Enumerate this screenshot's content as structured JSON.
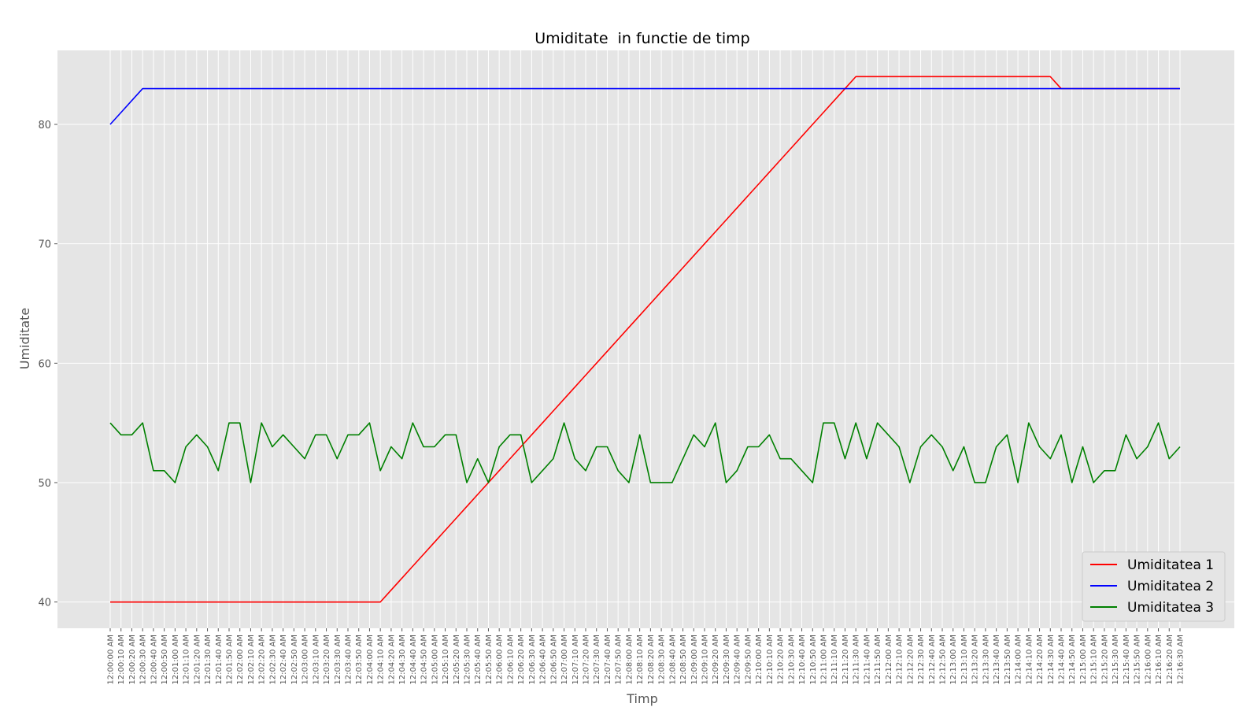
{
  "chart_data": {
    "type": "line",
    "title": "Umiditate  in functie de timp",
    "xlabel": "Timp",
    "ylabel": "Umiditate",
    "ylim": [
      37.8,
      86.2
    ],
    "yticks": [
      40,
      50,
      60,
      70,
      80
    ],
    "grid": true,
    "legend_position": "bottom-right",
    "x": [
      "12:00:00 AM",
      "12:00:10 AM",
      "12:00:20 AM",
      "12:00:30 AM",
      "12:00:40 AM",
      "12:00:50 AM",
      "12:01:00 AM",
      "12:01:10 AM",
      "12:01:20 AM",
      "12:01:30 AM",
      "12:01:40 AM",
      "12:01:50 AM",
      "12:02:00 AM",
      "12:02:10 AM",
      "12:02:20 AM",
      "12:02:30 AM",
      "12:02:40 AM",
      "12:02:50 AM",
      "12:03:00 AM",
      "12:03:10 AM",
      "12:03:20 AM",
      "12:03:30 AM",
      "12:03:40 AM",
      "12:03:50 AM",
      "12:04:00 AM",
      "12:04:10 AM",
      "12:04:20 AM",
      "12:04:30 AM",
      "12:04:40 AM",
      "12:04:50 AM",
      "12:05:00 AM",
      "12:05:10 AM",
      "12:05:20 AM",
      "12:05:30 AM",
      "12:05:40 AM",
      "12:05:50 AM",
      "12:06:00 AM",
      "12:06:10 AM",
      "12:06:20 AM",
      "12:06:30 AM",
      "12:06:40 AM",
      "12:06:50 AM",
      "12:07:00 AM",
      "12:07:10 AM",
      "12:07:20 AM",
      "12:07:30 AM",
      "12:07:40 AM",
      "12:07:50 AM",
      "12:08:00 AM",
      "12:08:10 AM",
      "12:08:20 AM",
      "12:08:30 AM",
      "12:08:40 AM",
      "12:08:50 AM",
      "12:09:00 AM",
      "12:09:10 AM",
      "12:09:20 AM",
      "12:09:30 AM",
      "12:09:40 AM",
      "12:09:50 AM",
      "12:10:00 AM",
      "12:10:10 AM",
      "12:10:20 AM",
      "12:10:30 AM",
      "12:10:40 AM",
      "12:10:50 AM",
      "12:11:00 AM",
      "12:11:10 AM",
      "12:11:20 AM",
      "12:11:30 AM",
      "12:11:40 AM",
      "12:11:50 AM",
      "12:12:00 AM",
      "12:12:10 AM",
      "12:12:20 AM",
      "12:12:30 AM",
      "12:12:40 AM",
      "12:12:50 AM",
      "12:13:00 AM",
      "12:13:10 AM",
      "12:13:20 AM",
      "12:13:30 AM",
      "12:13:40 AM",
      "12:13:50 AM",
      "12:14:00 AM",
      "12:14:10 AM",
      "12:14:20 AM",
      "12:14:30 AM",
      "12:14:40 AM",
      "12:14:50 AM",
      "12:15:00 AM",
      "12:15:10 AM",
      "12:15:20 AM",
      "12:15:30 AM",
      "12:15:40 AM",
      "12:15:50 AM",
      "12:16:00 AM",
      "12:16:10 AM",
      "12:16:20 AM",
      "12:16:30 AM"
    ],
    "xtick_labels": [
      "12:00:00 AM",
      "12:00:10 AM",
      "12:00:20 AM",
      "12:00:30 AM",
      "12:00:40 AM",
      "12:00:50 AM",
      "12:01:00 AM",
      "12:01:10 AM",
      "12:01:20 AM",
      "12:01:30 AM",
      "12:01:40 AM",
      "12:01:50 AM",
      "12:02:00 AM",
      "12:02:10 AM",
      "12:02:20 AM",
      "12:02:30 AM",
      "12:02:40 AM",
      "12:02:50 AM",
      "12:03:00 AM",
      "12:03:10 AM",
      "12:03:20 AM",
      "12:03:30 AM",
      "12:03:40 AM",
      "12:03:50 AM",
      "12:04:00 AM",
      "12:04:10 AM",
      "12:04:20 AM",
      "12:04:30 AM",
      "12:04:40 AM",
      "12:04:50 AM",
      "12:05:00 AM",
      "12:05:10 AM",
      "12:05:20 AM",
      "12:05:30 AM",
      "12:05:40 AM",
      "12:05:50 AM",
      "12:06:00 AM",
      "12:06:10 AM",
      "12:06:20 AM",
      "12:06:30 AM",
      "12:06:40 AM",
      "12:06:50 AM",
      "12:07:00 AM",
      "12:07:10 AM",
      "12:07:20 AM",
      "12:07:30 AM",
      "12:07:40 AM",
      "12:07:50 AM",
      "12:08:00 AM",
      "12:08:10 AM",
      "12:08:20 AM",
      "12:08:30 AM",
      "12:08:40 AM",
      "12:08:50 AM",
      "12:09:00 AM",
      "12:09:10 AM",
      "12:09:20 AM",
      "12:09:30 AM",
      "12:09:40 AM",
      "12:09:50 AM",
      "12:10:00 AM",
      "12:10:10 AM",
      "12:10:20 AM",
      "12:10:30 AM",
      "12:10:40 AM",
      "12:10:50 AM",
      "12:11:00 AM",
      "12:11:10 AM",
      "12:11:20 AM",
      "12:11:30 AM",
      "12:11:40 AM",
      "12:11:50 AM",
      "12:12:00 AM",
      "12:12:10 AM",
      "12:12:20 AM",
      "12:12:30 AM",
      "12:12:40 AM",
      "12:12:50 AM",
      "12:13:00 AM",
      "12:13:10 AM",
      "12:13:20 AM",
      "12:13:30 AM",
      "12:13:40 AM",
      "12:13:50 AM",
      "12:14:00 AM",
      "12:14:10 AM",
      "12:14:20 AM",
      "12:14:30 AM",
      "12:14:40 AM",
      "12:14:50 AM",
      "12:15:00 AM",
      "12:15:10 AM",
      "12:15:20 AM",
      "12:15:30 AM",
      "12:15:40 AM",
      "12:15:50 AM",
      "12:16:00 AM",
      "12:16:10 AM",
      "12:16:20 AM",
      "12:16:30 AM"
    ],
    "series": [
      {
        "name": "Umiditatea 1",
        "color": "#ff0000",
        "values": [
          40,
          40,
          40,
          40,
          40,
          40,
          40,
          40,
          40,
          40,
          40,
          40,
          40,
          40,
          40,
          40,
          40,
          40,
          40,
          40,
          40,
          40,
          40,
          40,
          40,
          40,
          41,
          42,
          43,
          44,
          45,
          46,
          47,
          48,
          49,
          50,
          51,
          52,
          53,
          54,
          55,
          56,
          57,
          58,
          59,
          60,
          61,
          62,
          63,
          64,
          65,
          66,
          67,
          68,
          69,
          70,
          71,
          72,
          73,
          74,
          75,
          76,
          77,
          78,
          79,
          80,
          81,
          82,
          83,
          84,
          84,
          84,
          84,
          84,
          84,
          84,
          84,
          84,
          84,
          84,
          84,
          84,
          84,
          84,
          84,
          84,
          84,
          84,
          83,
          83,
          83,
          83,
          83,
          83,
          83,
          83,
          83,
          83,
          83,
          83
        ]
      },
      {
        "name": "Umiditatea 2",
        "color": "#0000ff",
        "values": [
          80,
          81,
          82,
          83,
          83,
          83,
          83,
          83,
          83,
          83,
          83,
          83,
          83,
          83,
          83,
          83,
          83,
          83,
          83,
          83,
          83,
          83,
          83,
          83,
          83,
          83,
          83,
          83,
          83,
          83,
          83,
          83,
          83,
          83,
          83,
          83,
          83,
          83,
          83,
          83,
          83,
          83,
          83,
          83,
          83,
          83,
          83,
          83,
          83,
          83,
          83,
          83,
          83,
          83,
          83,
          83,
          83,
          83,
          83,
          83,
          83,
          83,
          83,
          83,
          83,
          83,
          83,
          83,
          83,
          83,
          83,
          83,
          83,
          83,
          83,
          83,
          83,
          83,
          83,
          83,
          83,
          83,
          83,
          83,
          83,
          83,
          83,
          83,
          83,
          83,
          83,
          83,
          83,
          83,
          83,
          83,
          83,
          83,
          83,
          83
        ]
      },
      {
        "name": "Umiditatea 3",
        "color": "#008000",
        "values": [
          55,
          54,
          54,
          55,
          51,
          51,
          50,
          53,
          54,
          53,
          51,
          55,
          55,
          50,
          55,
          53,
          54,
          53,
          52,
          54,
          54,
          52,
          54,
          54,
          55,
          51,
          53,
          52,
          55,
          53,
          53,
          54,
          54,
          50,
          52,
          50,
          53,
          54,
          54,
          50,
          51,
          52,
          55,
          52,
          51,
          53,
          53,
          51,
          50,
          54,
          50,
          50,
          50,
          52,
          54,
          53,
          55,
          50,
          51,
          53,
          53,
          54,
          52,
          52,
          51,
          50,
          55,
          55,
          52,
          55,
          52,
          55,
          54,
          53,
          50,
          53,
          54,
          53,
          51,
          53,
          50,
          50,
          53,
          54,
          50,
          55,
          53,
          52,
          54,
          50,
          53,
          50,
          51,
          51,
          54,
          52,
          53,
          55,
          52,
          53
        ]
      }
    ]
  }
}
